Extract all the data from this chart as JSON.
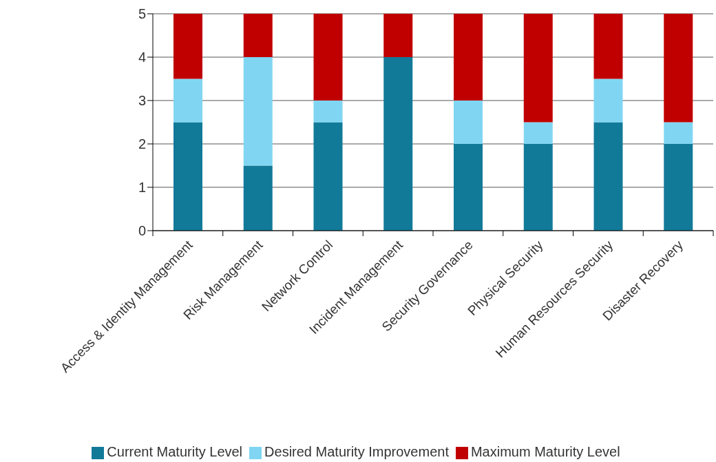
{
  "chart_data": {
    "type": "bar",
    "stacked": true,
    "categories": [
      "Access & Identity Management",
      "Risk Management",
      "Network Control",
      "Incident Management",
      "Security Governance",
      "Physical Security",
      "Human Resources Security",
      "Disaster Recovery"
    ],
    "series": [
      {
        "name": "Current Maturity Level",
        "color": "#127a99",
        "values": [
          2.5,
          1.5,
          2.5,
          4,
          2,
          2,
          2.5,
          2
        ]
      },
      {
        "name": "Desired Maturity Improvement",
        "color": "#80d6f2",
        "values": [
          1,
          2.5,
          0.5,
          0,
          1,
          0.5,
          1,
          0.5
        ]
      },
      {
        "name": "Maximum Maturity Level",
        "color": "#c00000",
        "values": [
          1.5,
          1,
          2,
          1,
          2,
          2.5,
          1.5,
          2.5
        ]
      }
    ],
    "ylim": [
      0,
      5
    ],
    "yticks": [
      0,
      1,
      2,
      3,
      4,
      5
    ],
    "grid": "y",
    "legend": "bottom"
  }
}
